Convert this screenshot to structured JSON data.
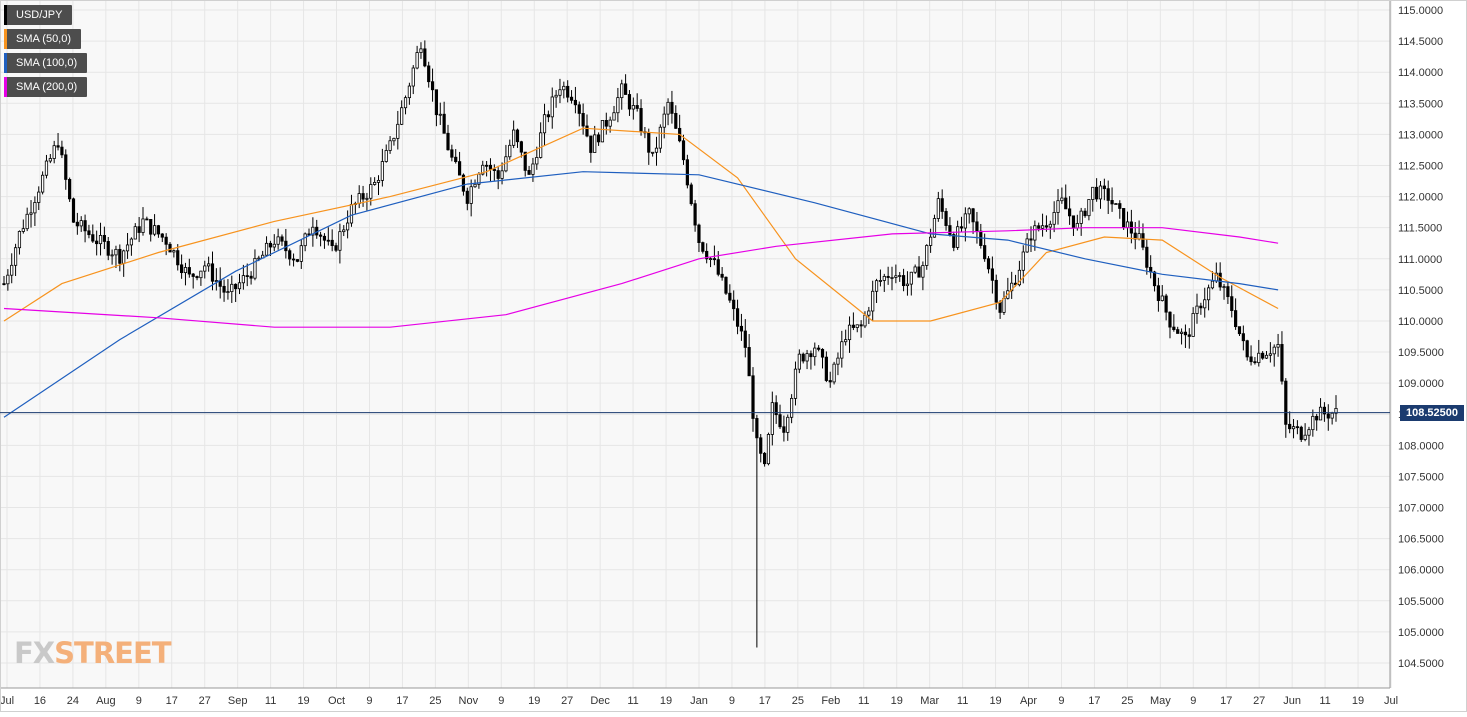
{
  "legend": [
    {
      "label": "USD/JPY",
      "color": "#000000"
    },
    {
      "label": "SMA (50,0)",
      "color": "#f7931e"
    },
    {
      "label": "SMA (100,0)",
      "color": "#1f5fbf"
    },
    {
      "label": "SMA (200,0)",
      "color": "#e600e6"
    }
  ],
  "price_tag": "108.52500",
  "logo": {
    "fx": "FX",
    "street": "STREET"
  },
  "colors": {
    "plot_bg": "#f8f8f8",
    "grid": "#e6e6e6",
    "current_line": "#1b3b6f",
    "sma50": "#f7931e",
    "sma100": "#1f5fbf",
    "sma200": "#e600e6"
  },
  "chart_data": {
    "type": "candlestick",
    "title": "",
    "symbol": "USD/JPY",
    "ylim": [
      104.25,
      115.1
    ],
    "y_ticks": [
      "115.0000",
      "114.5000",
      "114.0000",
      "113.5000",
      "113.0000",
      "112.5000",
      "112.0000",
      "111.5000",
      "111.0000",
      "110.5000",
      "110.0000",
      "109.5000",
      "109.0000",
      "108.5000",
      "108.0000",
      "107.5000",
      "107.0000",
      "106.5000",
      "106.0000",
      "105.5000",
      "105.0000",
      "104.5000"
    ],
    "x_ticks": [
      "Jul",
      "16",
      "24",
      "Aug",
      "9",
      "17",
      "27",
      "Sep",
      "11",
      "19",
      "Oct",
      "9",
      "17",
      "25",
      "Nov",
      "9",
      "19",
      "27",
      "Dec",
      "11",
      "19",
      "Jan",
      "9",
      "17",
      "25",
      "Feb",
      "11",
      "19",
      "Mar",
      "11",
      "19",
      "Apr",
      "9",
      "17",
      "25",
      "May",
      "9",
      "17",
      "27",
      "Jun",
      "11",
      "19",
      "Jul"
    ],
    "current_price": 108.525,
    "ohlc_close_path": [
      [
        0,
        110.6
      ],
      [
        4,
        111.4
      ],
      [
        8,
        112.0
      ],
      [
        14,
        112.9
      ],
      [
        18,
        111.6
      ],
      [
        24,
        111.3
      ],
      [
        30,
        111.05
      ],
      [
        36,
        111.6
      ],
      [
        42,
        111.3
      ],
      [
        48,
        110.7
      ],
      [
        52,
        110.9
      ],
      [
        58,
        110.4
      ],
      [
        64,
        110.8
      ],
      [
        70,
        111.3
      ],
      [
        76,
        111.0
      ],
      [
        80,
        111.6
      ],
      [
        85,
        111.1
      ],
      [
        90,
        111.8
      ],
      [
        96,
        112.2
      ],
      [
        100,
        112.8
      ],
      [
        104,
        113.6
      ],
      [
        108,
        114.5
      ],
      [
        112,
        113.4
      ],
      [
        116,
        112.6
      ],
      [
        120,
        112.0
      ],
      [
        124,
        112.6
      ],
      [
        128,
        112.3
      ],
      [
        132,
        113.0
      ],
      [
        136,
        112.3
      ],
      [
        140,
        113.2
      ],
      [
        144,
        113.8
      ],
      [
        148,
        113.6
      ],
      [
        152,
        112.8
      ],
      [
        156,
        113.2
      ],
      [
        160,
        113.7
      ],
      [
        164,
        113.3
      ],
      [
        168,
        112.6
      ],
      [
        172,
        113.5
      ],
      [
        176,
        112.6
      ],
      [
        180,
        111.3
      ],
      [
        184,
        110.9
      ],
      [
        188,
        110.3
      ],
      [
        192,
        109.6
      ],
      [
        195,
        108.0
      ],
      [
        197,
        107.6
      ],
      [
        199,
        108.6
      ],
      [
        202,
        108.3
      ],
      [
        206,
        109.4
      ],
      [
        210,
        109.6
      ],
      [
        214,
        109.0
      ],
      [
        218,
        109.8
      ],
      [
        222,
        109.9
      ],
      [
        226,
        110.6
      ],
      [
        230,
        110.8
      ],
      [
        234,
        110.6
      ],
      [
        238,
        110.9
      ],
      [
        242,
        111.9
      ],
      [
        246,
        111.3
      ],
      [
        250,
        111.7
      ],
      [
        254,
        111.1
      ],
      [
        258,
        110.2
      ],
      [
        262,
        110.7
      ],
      [
        266,
        111.4
      ],
      [
        270,
        111.6
      ],
      [
        274,
        111.9
      ],
      [
        278,
        111.5
      ],
      [
        282,
        112.1
      ],
      [
        286,
        112.0
      ],
      [
        290,
        111.6
      ],
      [
        294,
        111.3
      ],
      [
        298,
        110.6
      ],
      [
        302,
        110.0
      ],
      [
        306,
        109.7
      ],
      [
        310,
        110.3
      ],
      [
        314,
        110.7
      ],
      [
        318,
        110.2
      ],
      [
        322,
        109.4
      ],
      [
        326,
        109.5
      ],
      [
        330,
        109.6
      ],
      [
        332,
        108.3
      ],
      [
        336,
        108.2
      ],
      [
        340,
        108.5
      ],
      [
        345,
        108.525
      ]
    ],
    "series": [
      {
        "name": "SMA (50,0)",
        "values": [
          [
            0,
            110.0
          ],
          [
            15,
            110.6
          ],
          [
            40,
            111.1
          ],
          [
            70,
            111.6
          ],
          [
            100,
            112.0
          ],
          [
            125,
            112.4
          ],
          [
            150,
            113.1
          ],
          [
            175,
            113.0
          ],
          [
            190,
            112.3
          ],
          [
            205,
            111.0
          ],
          [
            225,
            110.0
          ],
          [
            240,
            110.0
          ],
          [
            258,
            110.3
          ],
          [
            270,
            111.1
          ],
          [
            285,
            111.35
          ],
          [
            300,
            111.3
          ],
          [
            315,
            110.7
          ],
          [
            330,
            110.2
          ]
        ]
      },
      {
        "name": "SMA (100,0)",
        "values": [
          [
            0,
            108.45
          ],
          [
            30,
            109.7
          ],
          [
            60,
            110.8
          ],
          [
            90,
            111.7
          ],
          [
            120,
            112.2
          ],
          [
            150,
            112.4
          ],
          [
            180,
            112.35
          ],
          [
            210,
            111.9
          ],
          [
            240,
            111.4
          ],
          [
            260,
            111.3
          ],
          [
            280,
            111.0
          ],
          [
            300,
            110.75
          ],
          [
            320,
            110.6
          ],
          [
            330,
            110.5
          ]
        ]
      },
      {
        "name": "SMA (200,0)",
        "values": [
          [
            0,
            110.2
          ],
          [
            40,
            110.05
          ],
          [
            70,
            109.9
          ],
          [
            100,
            109.9
          ],
          [
            130,
            110.1
          ],
          [
            160,
            110.6
          ],
          [
            180,
            111.0
          ],
          [
            200,
            111.2
          ],
          [
            230,
            111.4
          ],
          [
            260,
            111.45
          ],
          [
            280,
            111.5
          ],
          [
            300,
            111.5
          ],
          [
            320,
            111.35
          ],
          [
            330,
            111.25
          ]
        ]
      }
    ]
  }
}
